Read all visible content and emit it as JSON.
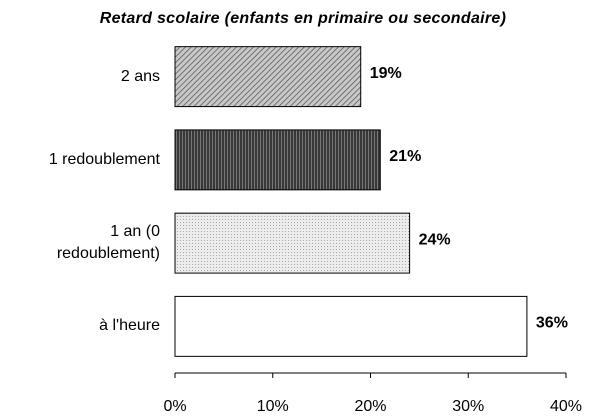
{
  "chart_data": {
    "type": "hbar",
    "title": "Retard scolaire (enfants en primaire ou secondaire)",
    "categories": [
      "2 ans",
      "1 redoublement",
      "1 an (0 redoublement)",
      "à l'heure"
    ],
    "values": [
      19,
      21,
      24,
      36
    ],
    "value_labels": [
      "19%",
      "21%",
      "24%",
      "36%"
    ],
    "colors": [
      "#9a9a9a",
      "#4a4a4a",
      "#e2e2e2",
      "#ffffff"
    ],
    "xlim": [
      0,
      40
    ],
    "xticks": [
      {
        "value": 0,
        "label": "0%"
      },
      {
        "value": 10,
        "label": "10%"
      },
      {
        "value": 20,
        "label": "20%"
      },
      {
        "value": 30,
        "label": "30%"
      },
      {
        "value": 40,
        "label": "40%"
      }
    ]
  }
}
